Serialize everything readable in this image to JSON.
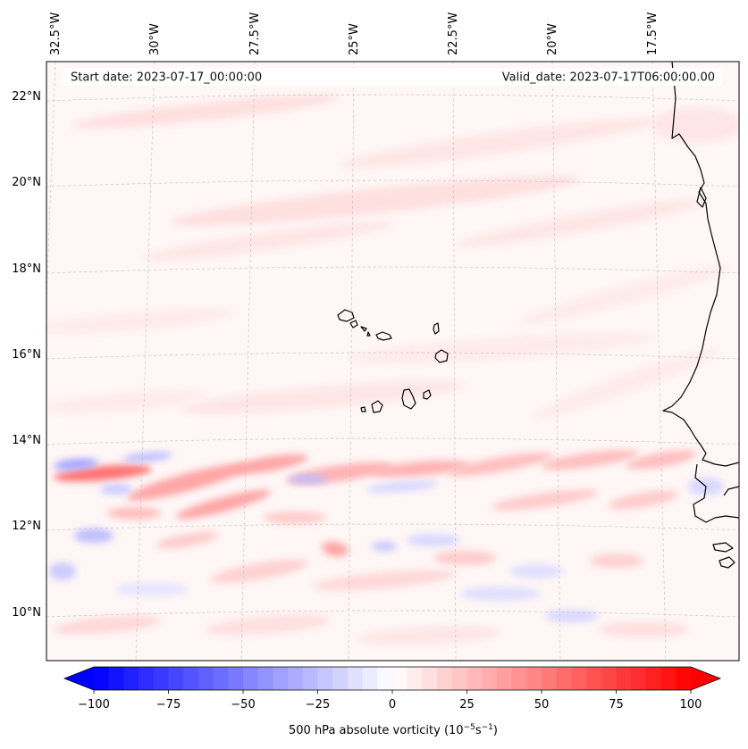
{
  "header": {
    "start_date": "Start date: 2023-07-17_00:00:00",
    "valid_date": "Valid_date: 2023-07-17T06:00:00.00"
  },
  "map": {
    "lon_labels": [
      "32.5°W",
      "30°W",
      "27.5°W",
      "25°W",
      "22.5°W",
      "20°W",
      "17.5°W"
    ],
    "lat_labels": [
      "22°N",
      "20°N",
      "18°N",
      "16°N",
      "14°N",
      "12°N",
      "10°N"
    ],
    "gridlines": true,
    "region": "Cabo Verde islands and West African coast"
  },
  "colorbar": {
    "ticks": [
      "−100",
      "−75",
      "−50",
      "−25",
      "0",
      "25",
      "50",
      "75",
      "100"
    ],
    "label": "500 hPa absolute vorticity (10",
    "label_exp1": "−5",
    "label_mid": "s",
    "label_exp2": "−1",
    "label_end": ")",
    "colormap": "bwr",
    "min_color": "#0000ff",
    "mid_color": "#ffffff",
    "max_color": "#ff0000"
  }
}
